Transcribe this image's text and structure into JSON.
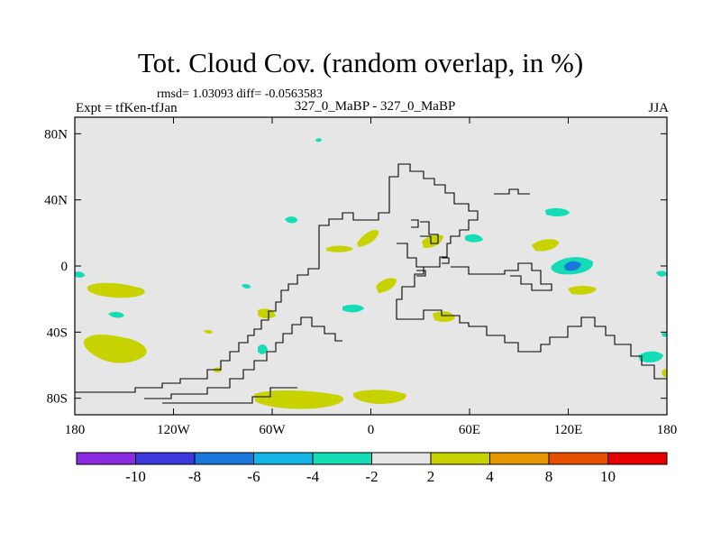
{
  "header": {
    "title": "Tot. Cloud Cov. (random overlap, in %)",
    "stats": "rmsd= 1.03093 diff= -0.0563583",
    "experiment": "Expt = tfKen-tfJan",
    "comparison": "327_0_MaBP - 327_0_MaBP",
    "season": "JJA"
  },
  "map": {
    "projection": "cylindrical-equidistant",
    "background_color": "#e6e6e6",
    "x_ticks": [
      {
        "lon": -180,
        "label": "180"
      },
      {
        "lon": -120,
        "label": "120W"
      },
      {
        "lon": -60,
        "label": "60W"
      },
      {
        "lon": 0,
        "label": "0"
      },
      {
        "lon": 60,
        "label": "60E"
      },
      {
        "lon": 120,
        "label": "120E"
      },
      {
        "lon": 180,
        "label": "180"
      }
    ],
    "y_ticks": [
      {
        "lat": 80,
        "label": "80N"
      },
      {
        "lat": 40,
        "label": "40N"
      },
      {
        "lat": 0,
        "label": "0"
      },
      {
        "lat": -40,
        "label": "40S"
      },
      {
        "lat": -80,
        "label": "80S"
      }
    ],
    "lon_range": [
      -180,
      180
    ],
    "lat_range": [
      -90,
      90
    ]
  },
  "colorbar": {
    "bins": [
      {
        "color": "#8a2be2"
      },
      {
        "color": "#3a3adc"
      },
      {
        "color": "#1a78dc"
      },
      {
        "color": "#14b4e6"
      },
      {
        "color": "#14dcb4"
      },
      {
        "color": "#e6e6e6"
      },
      {
        "color": "#c8d200"
      },
      {
        "color": "#e69600"
      },
      {
        "color": "#e65000"
      },
      {
        "color": "#e60000"
      }
    ],
    "labels": [
      "-10",
      "-8",
      "-6",
      "-4",
      "-2",
      "2",
      "4",
      "8",
      "10"
    ]
  }
}
